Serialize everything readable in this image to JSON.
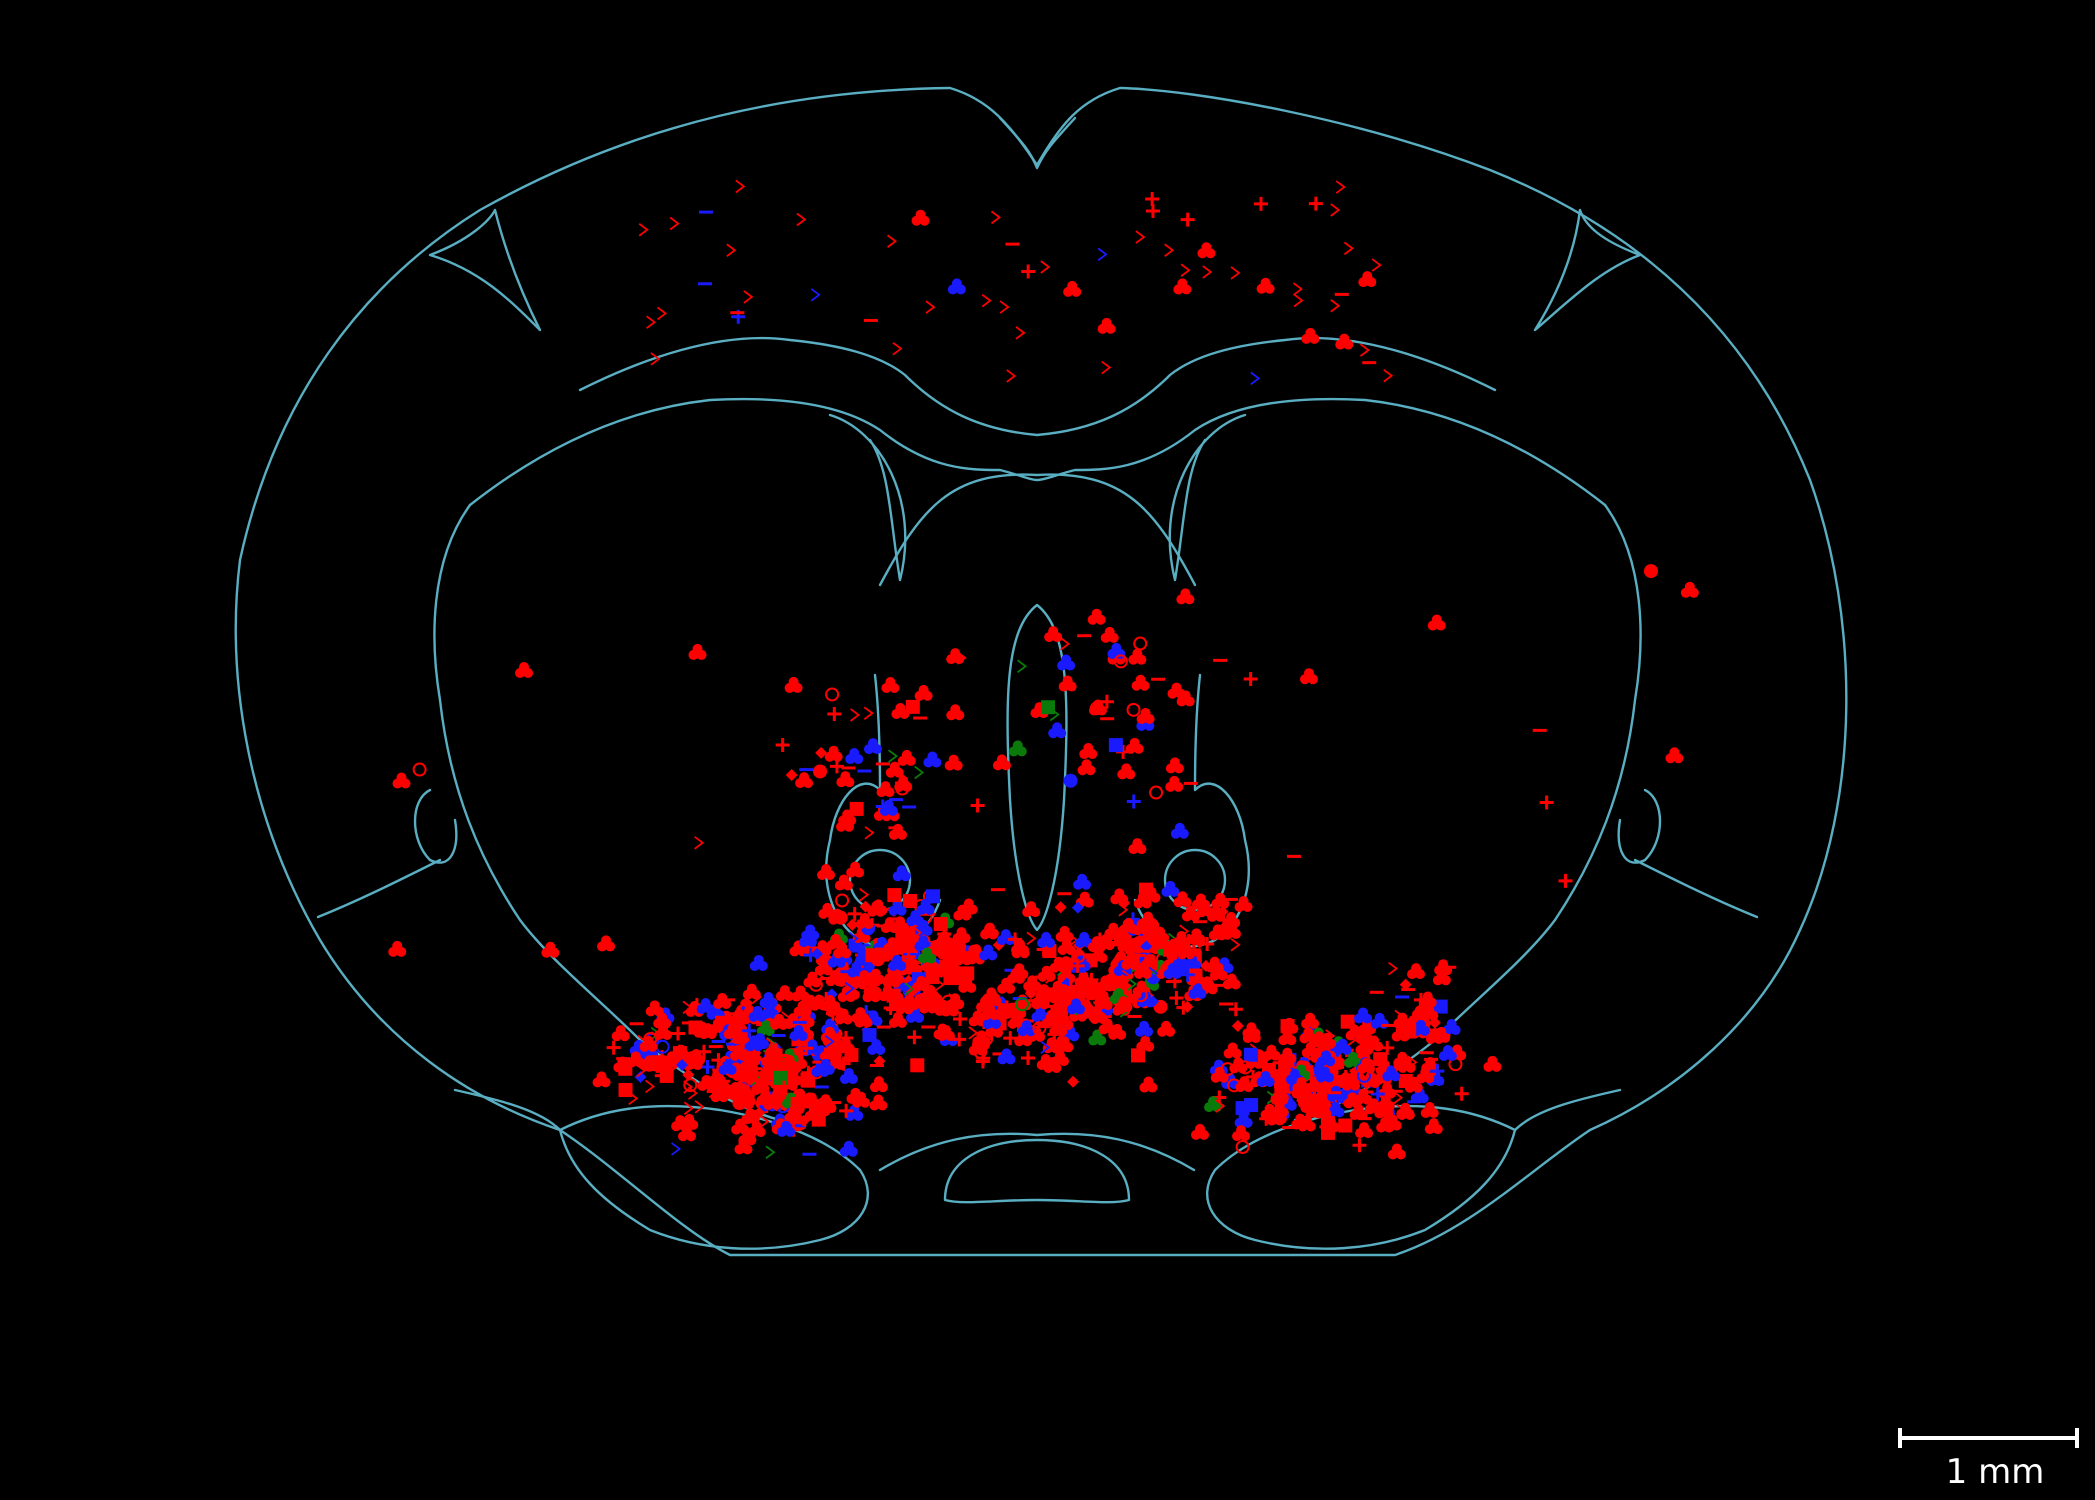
{
  "figure": {
    "type": "coronal brain section plot of labeled neuron locations",
    "background": "#000000",
    "outline_color": "#5aaec2"
  },
  "marker_colors": {
    "red": "#ff0000",
    "blue": "#1a1aff",
    "green": "#0a7a0a"
  },
  "marker_shapes": [
    "club",
    "plus",
    "minus",
    "chevron",
    "diamond",
    "square",
    "circle-ring",
    "circle-filled"
  ],
  "scale_bar": {
    "label": "1 mm"
  }
}
